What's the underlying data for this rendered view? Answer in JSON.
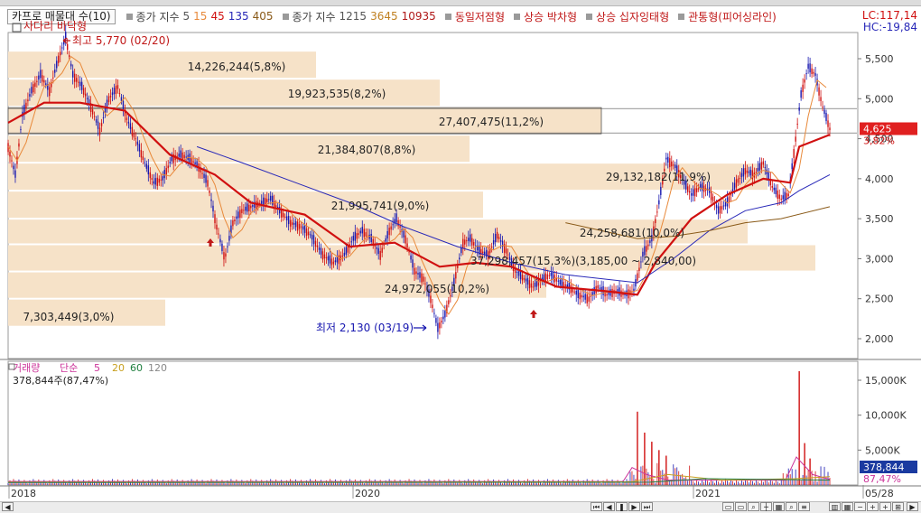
{
  "legend": {
    "title_box": "카프로 매물대 수(10)",
    "ma_label": "종가 지수",
    "ma_periods": [
      "5",
      "15",
      "45",
      "135",
      "405"
    ],
    "ma_colors": [
      "#555555",
      "#e8893a",
      "#d01010",
      "#2828b8",
      "#8a5a18"
    ],
    "long_label": "종가 지수",
    "long_periods": [
      "1215",
      "3645",
      "10935"
    ],
    "long_colors": [
      "#555555",
      "#c08020",
      "#b01818"
    ],
    "signals": [
      "동일저점형",
      "상승 박차형",
      "상승 십자잉태형",
      "관통형(피어싱라인)"
    ],
    "signal_color": "#c01818"
  },
  "header_right": {
    "lc": "LC:117,14",
    "hc": "HC:-19,84"
  },
  "pattern_label": "사다리 바닥형",
  "icons": {
    "signal": "square-marker-icon",
    "arrow": "up-arrow-icon"
  },
  "chart_data": [
    {
      "type": "candlestick",
      "y_ticks": [
        "5,500",
        "5,000",
        "4,500",
        "4,000",
        "3,500",
        "3,000",
        "2,500",
        "2,000"
      ],
      "ylim": [
        1700,
        5950
      ],
      "x_ticks": [
        "2018",
        "2020",
        "2021",
        "05/28"
      ],
      "current_price": "4,625",
      "current_change": "3,82%",
      "annotations": {
        "high": "최고 5,770 (02/20)",
        "low": "최저 2,130 (03/19)"
      },
      "volume_profile": [
        {
          "label": "14,226,244(5,8%)",
          "price_low": 5250,
          "price_high": 5600
        },
        {
          "label": "19,923,535(8,2%)",
          "price_low": 4900,
          "price_high": 5250
        },
        {
          "label": "27,407,475(11,2%)",
          "price_low": 4550,
          "price_high": 4900
        },
        {
          "label": "21,384,807(8,8%)",
          "price_low": 4200,
          "price_high": 4550
        },
        {
          "label": "29,132,182(11,9%)",
          "price_low": 3850,
          "price_high": 4200
        },
        {
          "label": "21,995,741(9,0%)",
          "price_low": 3500,
          "price_high": 3850
        },
        {
          "label": "24,258,681(10,0%)",
          "price_low": 3180,
          "price_high": 3500
        },
        {
          "label": "37,298,457(15,3%)(3,185,00 ~ 2,840,00)",
          "price_low": 2840,
          "price_high": 3180
        },
        {
          "label": "24,972,055(10,2%)",
          "price_low": 2500,
          "price_high": 2840
        },
        {
          "label": "7,303,449(3,0%)",
          "price_low": 2150,
          "price_high": 2500
        }
      ],
      "series": [
        {
          "name": "5",
          "color": "#555555"
        },
        {
          "name": "15",
          "color": "#e8893a"
        },
        {
          "name": "45",
          "color": "#d01010"
        },
        {
          "name": "135",
          "color": "#2828b8"
        },
        {
          "name": "405",
          "color": "#8a5a18"
        }
      ],
      "price_path": [
        [
          0,
          4400
        ],
        [
          8,
          4050
        ],
        [
          16,
          4800
        ],
        [
          26,
          5100
        ],
        [
          36,
          5300
        ],
        [
          46,
          5100
        ],
        [
          56,
          5500
        ],
        [
          64,
          5770
        ],
        [
          72,
          5300
        ],
        [
          82,
          5150
        ],
        [
          92,
          4900
        ],
        [
          102,
          4600
        ],
        [
          112,
          5000
        ],
        [
          122,
          5150
        ],
        [
          132,
          4750
        ],
        [
          142,
          4500
        ],
        [
          152,
          4200
        ],
        [
          162,
          3950
        ],
        [
          172,
          4000
        ],
        [
          182,
          4250
        ],
        [
          192,
          4300
        ],
        [
          202,
          4250
        ],
        [
          212,
          4150
        ],
        [
          222,
          3950
        ],
        [
          232,
          3400
        ],
        [
          241,
          3000
        ],
        [
          250,
          3450
        ],
        [
          260,
          3600
        ],
        [
          270,
          3650
        ],
        [
          282,
          3700
        ],
        [
          292,
          3750
        ],
        [
          302,
          3600
        ],
        [
          314,
          3450
        ],
        [
          326,
          3400
        ],
        [
          336,
          3300
        ],
        [
          350,
          3050
        ],
        [
          362,
          2950
        ],
        [
          374,
          3050
        ],
        [
          384,
          3250
        ],
        [
          394,
          3350
        ],
        [
          404,
          3250
        ],
        [
          414,
          3050
        ],
        [
          424,
          3350
        ],
        [
          432,
          3500
        ],
        [
          442,
          3250
        ],
        [
          452,
          2850
        ],
        [
          462,
          2750
        ],
        [
          470,
          2500
        ],
        [
          478,
          2130
        ],
        [
          486,
          2300
        ],
        [
          496,
          2700
        ],
        [
          506,
          3200
        ],
        [
          514,
          3250
        ],
        [
          524,
          3100
        ],
        [
          534,
          3050
        ],
        [
          544,
          3300
        ],
        [
          554,
          3100
        ],
        [
          564,
          2850
        ],
        [
          574,
          2750
        ],
        [
          584,
          2650
        ],
        [
          594,
          2750
        ],
        [
          604,
          2800
        ],
        [
          614,
          2700
        ],
        [
          624,
          2650
        ],
        [
          634,
          2550
        ],
        [
          646,
          2500
        ],
        [
          656,
          2650
        ],
        [
          666,
          2550
        ],
        [
          676,
          2600
        ],
        [
          686,
          2550
        ],
        [
          696,
          2600
        ],
        [
          706,
          3050
        ],
        [
          716,
          3250
        ],
        [
          724,
          3700
        ],
        [
          732,
          4250
        ],
        [
          742,
          4150
        ],
        [
          752,
          3950
        ],
        [
          760,
          3800
        ],
        [
          770,
          3900
        ],
        [
          780,
          3850
        ],
        [
          790,
          3600
        ],
        [
          800,
          3700
        ],
        [
          810,
          3950
        ],
        [
          820,
          4100
        ],
        [
          830,
          4050
        ],
        [
          840,
          4200
        ],
        [
          850,
          3900
        ],
        [
          860,
          3750
        ],
        [
          868,
          3800
        ],
        [
          876,
          4500
        ],
        [
          882,
          5050
        ],
        [
          890,
          5400
        ],
        [
          898,
          5300
        ],
        [
          906,
          4900
        ],
        [
          914,
          4625
        ]
      ],
      "ma45_path": [
        [
          0,
          4700
        ],
        [
          40,
          4950
        ],
        [
          80,
          4950
        ],
        [
          130,
          4850
        ],
        [
          180,
          4300
        ],
        [
          230,
          4050
        ],
        [
          270,
          3700
        ],
        [
          330,
          3550
        ],
        [
          380,
          3150
        ],
        [
          430,
          3200
        ],
        [
          480,
          2900
        ],
        [
          520,
          2950
        ],
        [
          560,
          2900
        ],
        [
          610,
          2650
        ],
        [
          660,
          2600
        ],
        [
          700,
          2550
        ],
        [
          720,
          2950
        ],
        [
          760,
          3500
        ],
        [
          800,
          3800
        ],
        [
          840,
          4000
        ],
        [
          870,
          3950
        ],
        [
          880,
          4400
        ],
        [
          914,
          4550
        ]
      ],
      "ma135_path": [
        [
          210,
          4400
        ],
        [
          260,
          4200
        ],
        [
          320,
          3950
        ],
        [
          380,
          3700
        ],
        [
          440,
          3400
        ],
        [
          500,
          3150
        ],
        [
          560,
          2950
        ],
        [
          620,
          2800
        ],
        [
          700,
          2700
        ],
        [
          740,
          3000
        ],
        [
          780,
          3350
        ],
        [
          820,
          3600
        ],
        [
          860,
          3700
        ],
        [
          880,
          3850
        ],
        [
          914,
          4050
        ]
      ],
      "ma405_path": [
        [
          620,
          3450
        ],
        [
          660,
          3350
        ],
        [
          700,
          3250
        ],
        [
          740,
          3280
        ],
        [
          780,
          3350
        ],
        [
          820,
          3450
        ],
        [
          860,
          3500
        ],
        [
          914,
          3650
        ]
      ]
    },
    {
      "type": "bar",
      "title": "거래량",
      "legend": [
        "단순",
        "5",
        "20",
        "60",
        "120"
      ],
      "legend_colors": [
        "#cc3399",
        "#cc3399",
        "#c8a020",
        "#208040",
        "#888888"
      ],
      "readout": "378,844주(87,47%)",
      "y_ticks": [
        "15,000K",
        "10,000K",
        "5,000K"
      ],
      "ylim": [
        0,
        17000000
      ],
      "current_volume": "378,844",
      "current_pct": "87,47%",
      "spikes": [
        [
          700,
          10500000
        ],
        [
          708,
          7500000
        ],
        [
          716,
          6200000
        ],
        [
          724,
          5000000
        ],
        [
          732,
          4200000
        ],
        [
          880,
          16300000
        ],
        [
          886,
          6000000
        ],
        [
          892,
          3800000
        ]
      ]
    }
  ]
}
